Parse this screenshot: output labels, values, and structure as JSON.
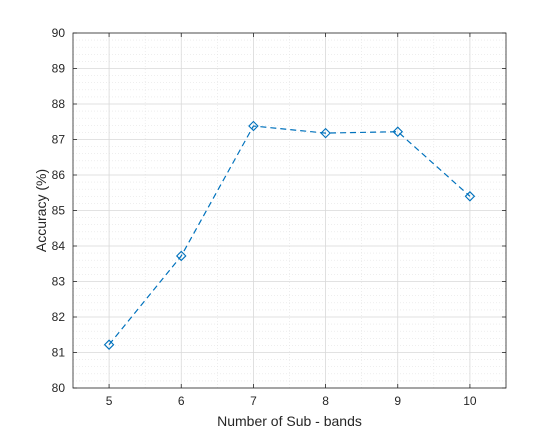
{
  "chart_data": {
    "type": "line",
    "xlabel": "Number of Sub - bands",
    "ylabel": "Accuracy (%)",
    "x": [
      5,
      6,
      7,
      8,
      9,
      10
    ],
    "series": [
      {
        "values": [
          81.22,
          83.72,
          87.38,
          87.18,
          87.22,
          85.4
        ]
      }
    ],
    "xlim": [
      4.5,
      10.5
    ],
    "ylim": [
      80,
      90
    ],
    "xticks": [
      "5",
      "6",
      "7",
      "8",
      "9",
      "10"
    ],
    "yticks": [
      "80",
      "81",
      "82",
      "83",
      "84",
      "85",
      "86",
      "87",
      "88",
      "89",
      "90"
    ],
    "grid": true,
    "minor_grid": true,
    "line_style": "dashed",
    "marker": "diamond",
    "line_color": "#0072BD",
    "axes_color": "#262626",
    "grid_color": "#d9d9d9"
  }
}
